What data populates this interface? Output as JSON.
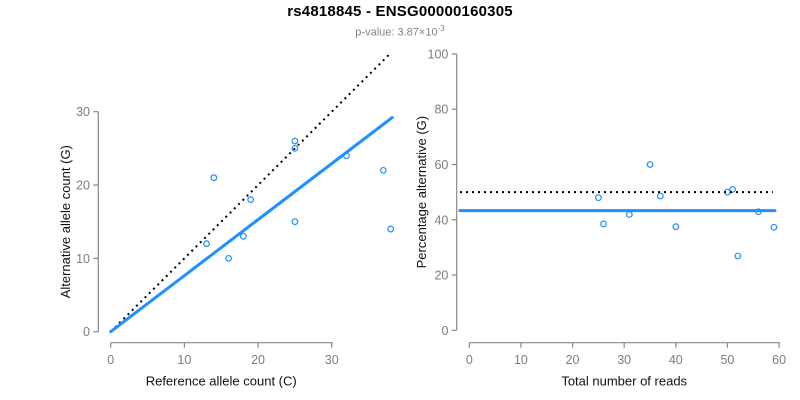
{
  "figure": {
    "title": "rs4818845 - ENSG00000160305",
    "subtitle_prefix": "p-value: 3.87×10",
    "subtitle_exponent": "-3"
  },
  "style": {
    "point_color": "#1E90FF",
    "fit_line_color": "#1E90FF",
    "reference_line_color": "#000000",
    "axis_color": "#888888",
    "tick_label_color": "#7D7D7D",
    "axis_title_color": "#111111",
    "subtitle_color": "#848484",
    "background": "#FFFFFF"
  },
  "chart_data": [
    {
      "name": "allele-counts",
      "type": "scatter",
      "xlabel": "Reference allele count (C)",
      "ylabel": "Alternative allele count (G)",
      "xlim": [
        0,
        38
      ],
      "ylim": [
        0,
        38
      ],
      "xticks": [
        0,
        10,
        20,
        30
      ],
      "yticks": [
        0,
        10,
        20,
        30
      ],
      "grid": false,
      "legend": "none",
      "points": [
        [
          13,
          12
        ],
        [
          14,
          21
        ],
        [
          16,
          10
        ],
        [
          18,
          13
        ],
        [
          19,
          18
        ],
        [
          25,
          15
        ],
        [
          25,
          25
        ],
        [
          25,
          26
        ],
        [
          32,
          24
        ],
        [
          37,
          22
        ],
        [
          38,
          14
        ]
      ],
      "lines": [
        {
          "name": "identity-line",
          "style": "dotted",
          "from": [
            0,
            0
          ],
          "to": [
            38,
            38
          ]
        },
        {
          "name": "fit-line",
          "style": "solid",
          "from": [
            0,
            0
          ],
          "to": [
            38.2,
            29.2
          ]
        }
      ]
    },
    {
      "name": "percentage-vs-reads",
      "type": "scatter",
      "xlabel": "Total number of reads",
      "ylabel": "Percentage alternative (G)",
      "xlim": [
        0,
        60
      ],
      "ylim": [
        0,
        100
      ],
      "xticks": [
        0,
        10,
        20,
        30,
        40,
        50,
        60
      ],
      "yticks": [
        0,
        20,
        40,
        60,
        80,
        100
      ],
      "grid": false,
      "legend": "none",
      "points": [
        [
          25,
          48
        ],
        [
          26,
          38.5
        ],
        [
          31,
          41.9
        ],
        [
          35,
          60
        ],
        [
          37,
          48.6
        ],
        [
          40,
          37.5
        ],
        [
          50,
          50
        ],
        [
          51,
          51
        ],
        [
          52,
          26.9
        ],
        [
          56,
          42.9
        ],
        [
          59,
          37.3
        ]
      ],
      "lines": [
        {
          "name": "fifty-percent-line",
          "style": "dotted",
          "from": [
            -1.8,
            50
          ],
          "to": [
            58.8,
            50
          ]
        },
        {
          "name": "mean-percentage-line",
          "style": "solid",
          "from": [
            -1.8,
            43.3
          ],
          "to": [
            59.2,
            43.3
          ]
        }
      ]
    }
  ]
}
